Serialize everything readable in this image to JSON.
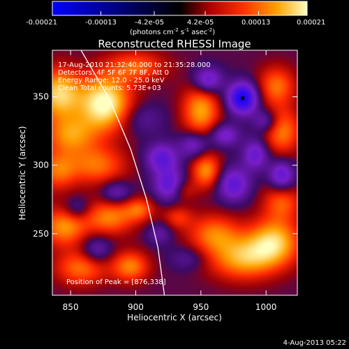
{
  "chart_data": {
    "type": "heatmap",
    "title": "Reconstructed RHESSI Image",
    "xlabel": "Heliocentric X (arcsec)",
    "ylabel": "Heliocentric Y (arcsec)",
    "xlim": [
      836,
      1024
    ],
    "ylim": [
      205,
      384
    ],
    "x_ticks": [
      850,
      900,
      950,
      1000
    ],
    "y_ticks": [
      250,
      300,
      350
    ],
    "colorbar": {
      "ticks": [
        "-0.00021",
        "-0.00013",
        "-4.2e-05",
        "4.2e-05",
        "0.00013",
        "0.00021"
      ],
      "tick_values": [
        -0.00021,
        -0.00013,
        -4.2e-05,
        4.2e-05,
        0.00013,
        0.00021
      ],
      "range": [
        -0.00021,
        0.00021
      ],
      "unit_line1": "(photons cm",
      "unit_exp1": "-2",
      "unit_line2": " s",
      "unit_exp2": "-1",
      "unit_line3": " asec",
      "unit_exp3": "-2",
      "unit_close": ")"
    },
    "annotations": [
      "17-Aug-2010 21:32:40.000 to 21:35:28.000",
      "Detectors: 4F 5F 6F 7F 8F, Att 0",
      "Energy Range: 12.0 - 25.0 keV",
      "Clean     Total counts: 5.73E+03"
    ],
    "peak_label": "Position of Peak = [876,338]",
    "peak": [
      876,
      338
    ],
    "peak_marker": [
      982,
      349
    ],
    "blobs": [
      {
        "x": 876,
        "y": 345,
        "sx": 14,
        "sy": 14,
        "v": 0.00021
      },
      {
        "x": 841,
        "y": 352,
        "sx": 12,
        "sy": 13,
        "v": 0.00017
      },
      {
        "x": 850,
        "y": 322,
        "sx": 14,
        "sy": 10,
        "v": 0.00012
      },
      {
        "x": 870,
        "y": 300,
        "sx": 16,
        "sy": 10,
        "v": 0.00011
      },
      {
        "x": 840,
        "y": 296,
        "sx": 10,
        "sy": 10,
        "v": 0.0001
      },
      {
        "x": 845,
        "y": 255,
        "sx": 12,
        "sy": 10,
        "v": 0.00013
      },
      {
        "x": 880,
        "y": 262,
        "sx": 14,
        "sy": 9,
        "v": 0.00012
      },
      {
        "x": 903,
        "y": 268,
        "sx": 8,
        "sy": 6,
        "v": 9e-05
      },
      {
        "x": 858,
        "y": 225,
        "sx": 14,
        "sy": 9,
        "v": 0.00011
      },
      {
        "x": 896,
        "y": 226,
        "sx": 10,
        "sy": 8,
        "v": 0.00012
      },
      {
        "x": 900,
        "y": 372,
        "sx": 16,
        "sy": 8,
        "v": 0.0001
      },
      {
        "x": 936,
        "y": 282,
        "sx": 7,
        "sy": 6,
        "v": 8e-05
      },
      {
        "x": 954,
        "y": 296,
        "sx": 8,
        "sy": 9,
        "v": 0.00013
      },
      {
        "x": 950,
        "y": 340,
        "sx": 10,
        "sy": 14,
        "v": 0.00014
      },
      {
        "x": 932,
        "y": 262,
        "sx": 8,
        "sy": 6,
        "v": 7e-05
      },
      {
        "x": 960,
        "y": 250,
        "sx": 14,
        "sy": 10,
        "v": 0.00011
      },
      {
        "x": 982,
        "y": 232,
        "sx": 18,
        "sy": 11,
        "v": 0.00014
      },
      {
        "x": 1006,
        "y": 244,
        "sx": 14,
        "sy": 12,
        "v": 0.00016
      },
      {
        "x": 1012,
        "y": 274,
        "sx": 10,
        "sy": 10,
        "v": 0.0001
      },
      {
        "x": 1008,
        "y": 358,
        "sx": 10,
        "sy": 10,
        "v": 0.00011
      },
      {
        "x": 1012,
        "y": 325,
        "sx": 10,
        "sy": 12,
        "v": 0.00012
      },
      {
        "x": 982,
        "y": 349,
        "sx": 8,
        "sy": 8,
        "v": -0.00021
      },
      {
        "x": 955,
        "y": 362,
        "sx": 8,
        "sy": 7,
        "v": -0.00013
      },
      {
        "x": 920,
        "y": 305,
        "sx": 9,
        "sy": 8,
        "v": -0.00012
      },
      {
        "x": 945,
        "y": 315,
        "sx": 8,
        "sy": 7,
        "v": -0.0001
      },
      {
        "x": 968,
        "y": 322,
        "sx": 8,
        "sy": 6,
        "v": -0.0001
      },
      {
        "x": 927,
        "y": 285,
        "sx": 9,
        "sy": 8,
        "v": -0.00013
      },
      {
        "x": 975,
        "y": 286,
        "sx": 9,
        "sy": 9,
        "v": -0.00012
      },
      {
        "x": 992,
        "y": 308,
        "sx": 7,
        "sy": 8,
        "v": -0.00011
      },
      {
        "x": 1012,
        "y": 292,
        "sx": 7,
        "sy": 8,
        "v": -0.00013
      },
      {
        "x": 1000,
        "y": 332,
        "sx": 7,
        "sy": 6,
        "v": -9e-05
      },
      {
        "x": 905,
        "y": 334,
        "sx": 12,
        "sy": 8,
        "v": -5e-05
      },
      {
        "x": 855,
        "y": 268,
        "sx": 7,
        "sy": 6,
        "v": -7e-05
      },
      {
        "x": 885,
        "y": 280,
        "sx": 8,
        "sy": 6,
        "v": -8e-05
      },
      {
        "x": 870,
        "y": 238,
        "sx": 8,
        "sy": 7,
        "v": -8e-05
      },
      {
        "x": 918,
        "y": 250,
        "sx": 7,
        "sy": 6,
        "v": -6e-05
      },
      {
        "x": 940,
        "y": 232,
        "sx": 10,
        "sy": 6,
        "v": -5e-05
      }
    ],
    "limb_arc": [
      [
        858,
        384
      ],
      [
        880,
        348
      ],
      [
        896,
        312
      ],
      [
        908,
        276
      ],
      [
        917,
        240
      ],
      [
        922,
        205
      ]
    ],
    "footer_timestamp": "4-Aug-2013 05:22"
  }
}
